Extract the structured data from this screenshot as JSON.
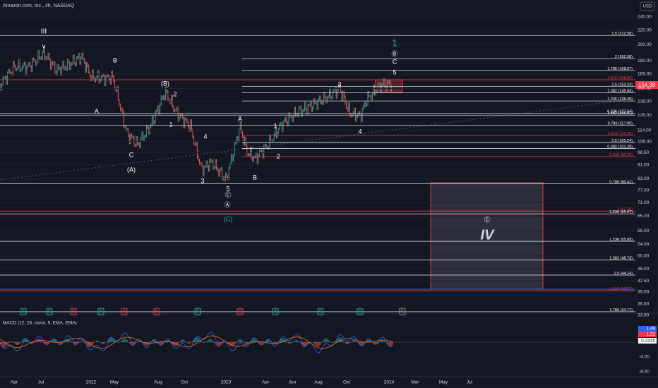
{
  "header": {
    "symbol": "Amazon.com, Inc., 4h, NASDAQ",
    "currency": "USD"
  },
  "price_axis": [
    "240.00",
    "220.00",
    "200.00",
    "180.00",
    "165.00",
    "150.00",
    "138.00",
    "126.00",
    "114.00",
    "106.00",
    "98.50",
    "91.00",
    "83.00",
    "77.00",
    "71.00",
    "65.00",
    "59.00",
    "54.00",
    "50.00",
    "46.00",
    "42.50",
    "39.50",
    "36.50",
    "33.90"
  ],
  "last_price": "154.38",
  "fib_levels": [
    {
      "label": "1.5 (212.58)",
      "color": "white"
    },
    {
      "label": "2 (182.68)",
      "color": "white"
    },
    {
      "label": "1.786 (168.97)",
      "color": "white"
    },
    {
      "label": "1.618 (158.94)",
      "color": "red"
    },
    {
      "label": "1.5 (152.24)",
      "color": "white"
    },
    {
      "label": "1.382 (145.84)",
      "color": "white"
    },
    {
      "label": "1.236 (138.28)",
      "color": "white"
    },
    {
      "label": "0.236 (127.64)",
      "color": "white"
    },
    {
      "label": "1.382 (126.01)",
      "color": "white"
    },
    {
      "label": "0.786 (117.90)",
      "color": "white"
    },
    {
      "label": "0.618 (110.39)",
      "color": "red"
    },
    {
      "label": "0.5 (105.24)",
      "color": "white"
    },
    {
      "label": "0.382 (101.29)",
      "color": "white"
    },
    {
      "label": "0.236 (96.06)",
      "color": "red"
    },
    {
      "label": "0.786 (80.41)",
      "color": "white"
    },
    {
      "label": "1 (67.18)",
      "color": "red"
    },
    {
      "label": "1.236 (65.97)",
      "color": "white"
    },
    {
      "label": "1.236 (55.09)",
      "color": "white"
    },
    {
      "label": "1.382 (48.73)",
      "color": "white"
    },
    {
      "label": "1.5 (44.14)",
      "color": "white"
    },
    {
      "label": "1.618 (39.87)",
      "color": "red"
    },
    {
      "label": "1.786 (34.71)",
      "color": "white"
    }
  ],
  "wave_labels": [
    "III",
    "v",
    "B",
    "A",
    "C",
    "(A)",
    "(B)",
    "2",
    "1",
    "4",
    "3",
    "A",
    "5",
    "Ⓒ",
    "Ⓐ",
    "(C)",
    "B",
    "1",
    "2",
    "3",
    "4",
    "5",
    "C",
    "Ⓑ",
    "1",
    "Ⓒ",
    "IV"
  ],
  "time_axis": [
    "Apr",
    "Jul",
    "2022",
    "May",
    "Aug",
    "Oct",
    "2023",
    "Apr",
    "Jun",
    "Aug",
    "Oct",
    "2024",
    "Mar",
    "May",
    "Jul"
  ],
  "event_markers": [
    "E",
    "E",
    "E",
    "E",
    "E",
    "E",
    "E",
    "E",
    "E",
    "E",
    "E",
    "E"
  ],
  "macd": {
    "title": "MACD (12, 26, close, 9, EMA, EMA)",
    "tags": [
      "1.46",
      "1.22",
      "0.2335"
    ],
    "axis": [
      "-4.00",
      "-8.00"
    ]
  }
}
